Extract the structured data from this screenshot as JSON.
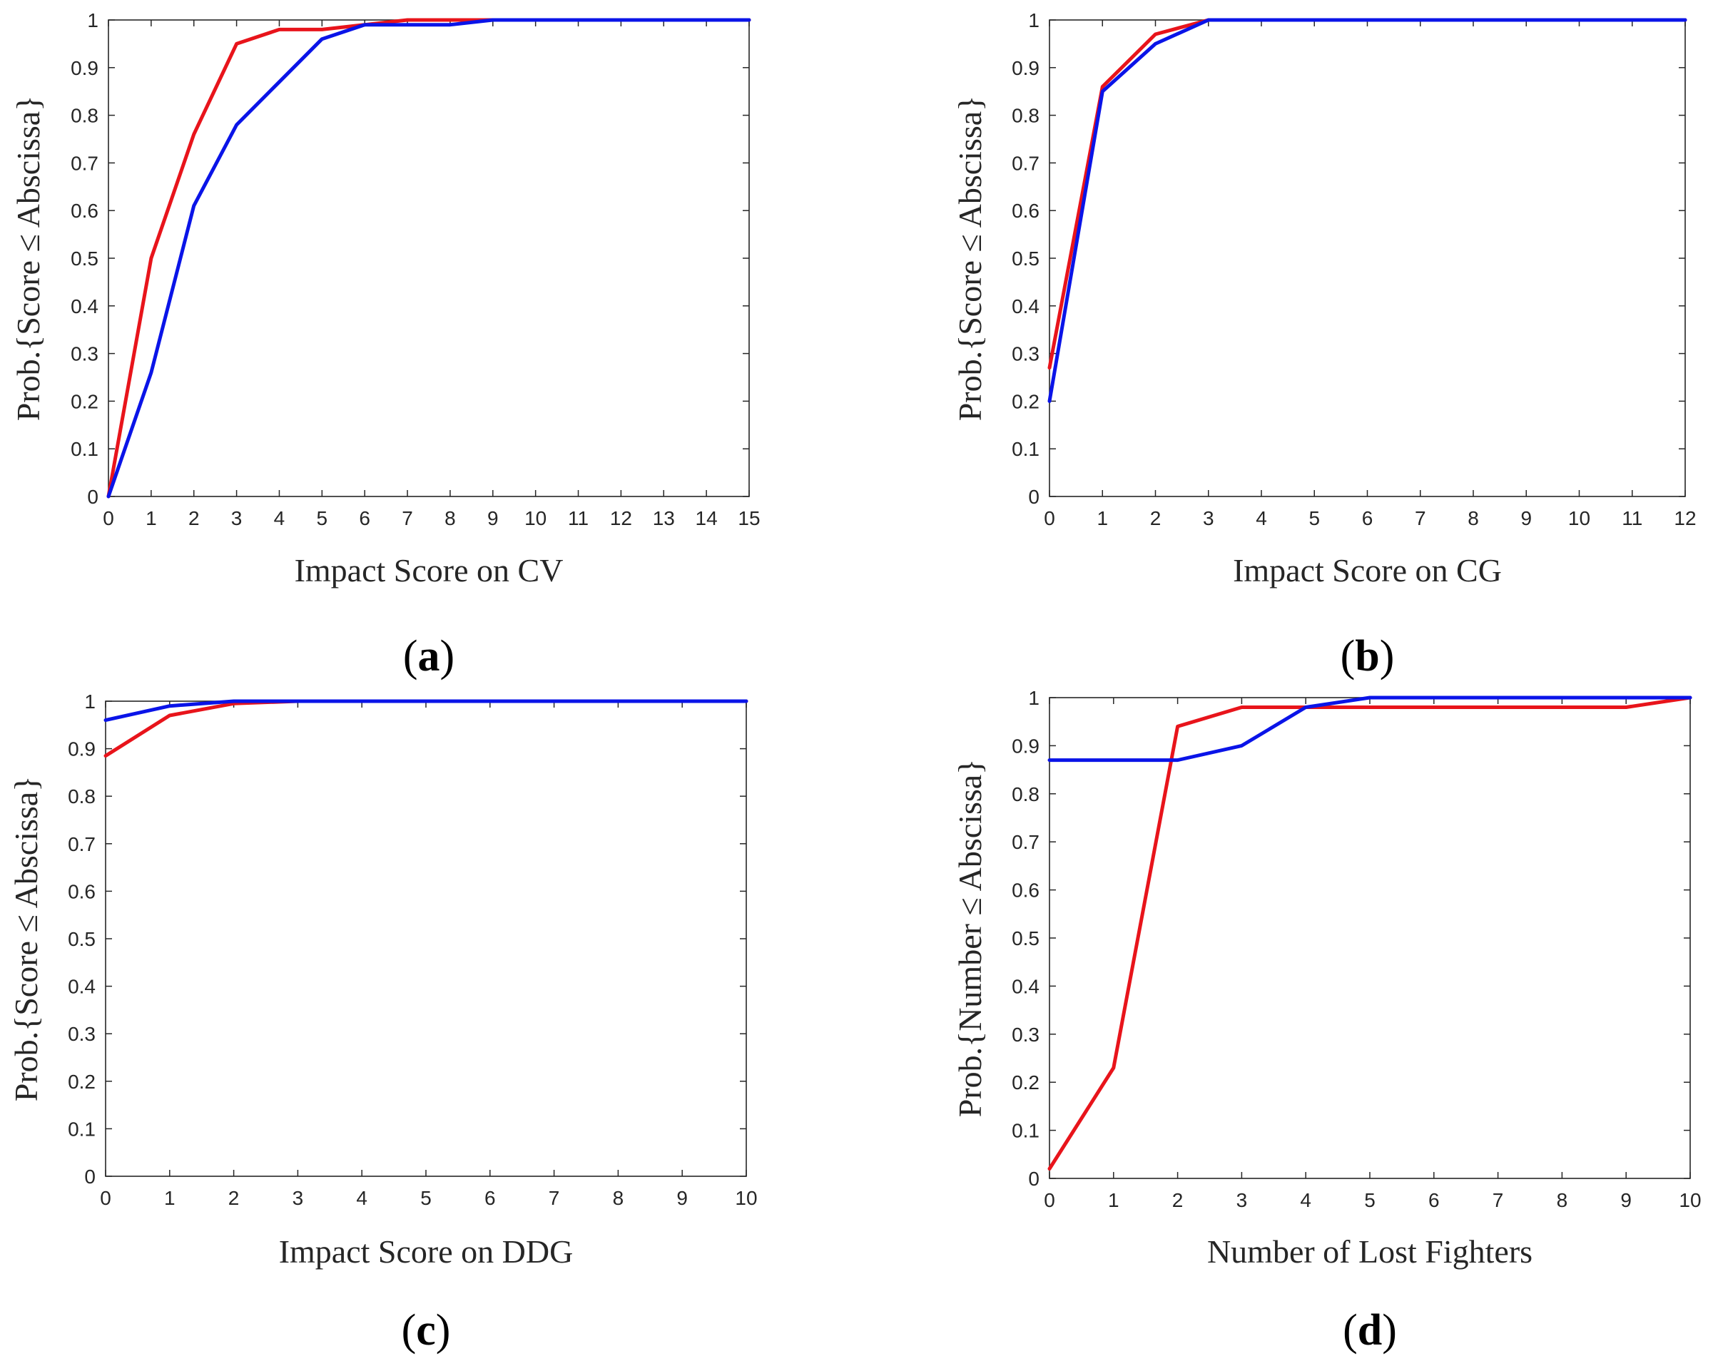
{
  "colors": {
    "red": "#e8141b",
    "blue": "#0a14e8",
    "axis": "#262626"
  },
  "chart_data": [
    {
      "type": "line",
      "panel_label": "a",
      "xlabel": "Impact Score on CV",
      "ylabel": "Prob.{Score ≤ Abscissa}",
      "xlim": [
        0,
        15
      ],
      "ylim": [
        0,
        1
      ],
      "xticks": [
        "0",
        "1",
        "2",
        "3",
        "4",
        "5",
        "6",
        "7",
        "8",
        "9",
        "10",
        "11",
        "12",
        "13",
        "14",
        "15"
      ],
      "yticks": [
        "0",
        "0.1",
        "0.2",
        "0.3",
        "0.4",
        "0.5",
        "0.6",
        "0.7",
        "0.8",
        "0.9",
        "1"
      ],
      "series": [
        {
          "name": "red",
          "color": "#e8141b",
          "x": [
            0,
            1,
            2,
            3,
            4,
            5,
            6,
            7,
            8,
            9,
            15
          ],
          "y": [
            0,
            0.5,
            0.76,
            0.95,
            0.98,
            0.98,
            0.99,
            1,
            1,
            1,
            1
          ]
        },
        {
          "name": "blue",
          "color": "#0a14e8",
          "x": [
            0,
            1,
            2,
            3,
            4,
            5,
            6,
            7,
            8,
            9,
            15
          ],
          "y": [
            0,
            0.26,
            0.61,
            0.78,
            0.87,
            0.96,
            0.99,
            0.99,
            0.99,
            1,
            1
          ]
        }
      ]
    },
    {
      "type": "line",
      "panel_label": "b",
      "xlabel": "Impact Score on CG",
      "ylabel": "Prob.{Score ≤ Abscissa}",
      "xlim": [
        0,
        12
      ],
      "ylim": [
        0,
        1
      ],
      "xticks": [
        "0",
        "1",
        "2",
        "3",
        "4",
        "5",
        "6",
        "7",
        "8",
        "9",
        "10",
        "11",
        "12"
      ],
      "yticks": [
        "0",
        "0.1",
        "0.2",
        "0.3",
        "0.4",
        "0.5",
        "0.6",
        "0.7",
        "0.8",
        "0.9",
        "1"
      ],
      "series": [
        {
          "name": "red",
          "color": "#e8141b",
          "x": [
            0,
            1,
            2,
            3,
            12
          ],
          "y": [
            0.27,
            0.86,
            0.97,
            1,
            1
          ]
        },
        {
          "name": "blue",
          "color": "#0a14e8",
          "x": [
            0,
            1,
            2,
            3,
            12
          ],
          "y": [
            0.2,
            0.85,
            0.95,
            1,
            1
          ]
        }
      ]
    },
    {
      "type": "line",
      "panel_label": "c",
      "xlabel": "Impact Score on DDG",
      "ylabel": "Prob.{Score ≤ Abscissa}",
      "xlim": [
        0,
        10
      ],
      "ylim": [
        0,
        1
      ],
      "xticks": [
        "0",
        "1",
        "2",
        "3",
        "4",
        "5",
        "6",
        "7",
        "8",
        "9",
        "10"
      ],
      "yticks": [
        "0",
        "0.1",
        "0.2",
        "0.3",
        "0.4",
        "0.5",
        "0.6",
        "0.7",
        "0.8",
        "0.9",
        "1"
      ],
      "series": [
        {
          "name": "red",
          "color": "#e8141b",
          "x": [
            0,
            1,
            2,
            3,
            10
          ],
          "y": [
            0.885,
            0.97,
            0.995,
            1,
            1
          ]
        },
        {
          "name": "blue",
          "color": "#0a14e8",
          "x": [
            0,
            1,
            2,
            3,
            10
          ],
          "y": [
            0.96,
            0.99,
            1,
            1,
            1
          ]
        }
      ]
    },
    {
      "type": "line",
      "panel_label": "d",
      "xlabel": "Number of Lost Fighters",
      "ylabel": "Prob.{Number ≤ Abscissa}",
      "xlim": [
        0,
        10
      ],
      "ylim": [
        0,
        1
      ],
      "xticks": [
        "0",
        "1",
        "2",
        "3",
        "4",
        "5",
        "6",
        "7",
        "8",
        "9",
        "10"
      ],
      "yticks": [
        "0",
        "0.1",
        "0.2",
        "0.3",
        "0.4",
        "0.5",
        "0.6",
        "0.7",
        "0.8",
        "0.9",
        "1"
      ],
      "series": [
        {
          "name": "red",
          "color": "#e8141b",
          "x": [
            0,
            1,
            2,
            3,
            4,
            5,
            6,
            7,
            8,
            9,
            10
          ],
          "y": [
            0.02,
            0.23,
            0.94,
            0.98,
            0.98,
            0.98,
            0.98,
            0.98,
            0.98,
            0.98,
            1
          ]
        },
        {
          "name": "blue",
          "color": "#0a14e8",
          "x": [
            0,
            1,
            2,
            3,
            4,
            5,
            6,
            7,
            8,
            9,
            10
          ],
          "y": [
            0.87,
            0.87,
            0.87,
            0.9,
            0.98,
            1,
            1,
            1,
            1,
            1,
            1
          ]
        }
      ]
    }
  ]
}
